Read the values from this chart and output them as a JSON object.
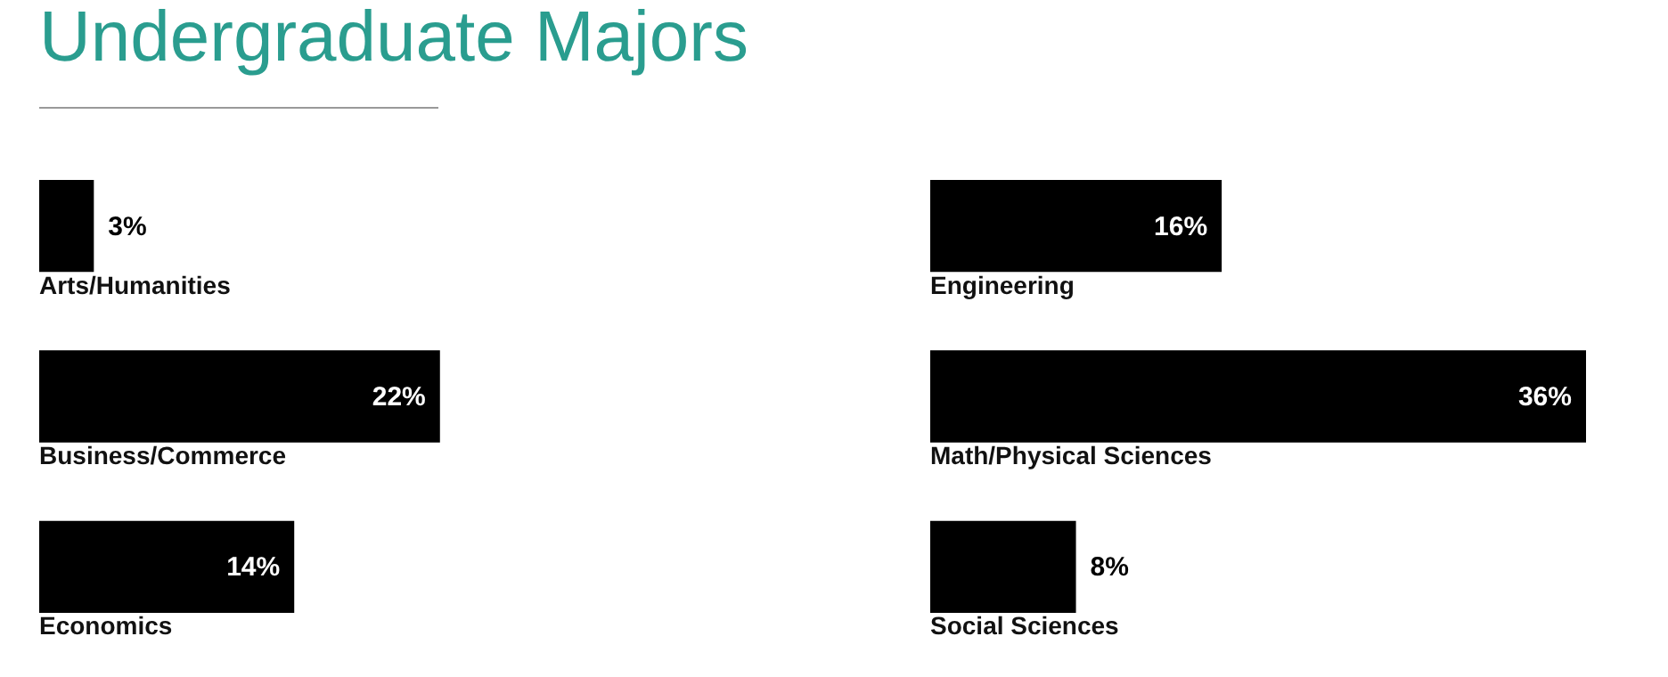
{
  "chart_data": [
    {
      "type": "bar",
      "orientation": "horizontal",
      "title": "Undergraduate Majors",
      "categories": [
        "Arts/Humanities",
        "Business/Commerce",
        "Economics"
      ],
      "values": [
        3,
        22,
        14
      ],
      "value_labels": [
        "3%",
        "22%",
        "14%"
      ],
      "color": "#000000"
    },
    {
      "type": "bar",
      "orientation": "horizontal",
      "categories": [
        "Engineering",
        "Math/Physical Sciences",
        "Social Sciences"
      ],
      "values": [
        16,
        36,
        8
      ],
      "value_labels": [
        "16%",
        "36%",
        "8%"
      ],
      "color": "#000000"
    }
  ]
}
